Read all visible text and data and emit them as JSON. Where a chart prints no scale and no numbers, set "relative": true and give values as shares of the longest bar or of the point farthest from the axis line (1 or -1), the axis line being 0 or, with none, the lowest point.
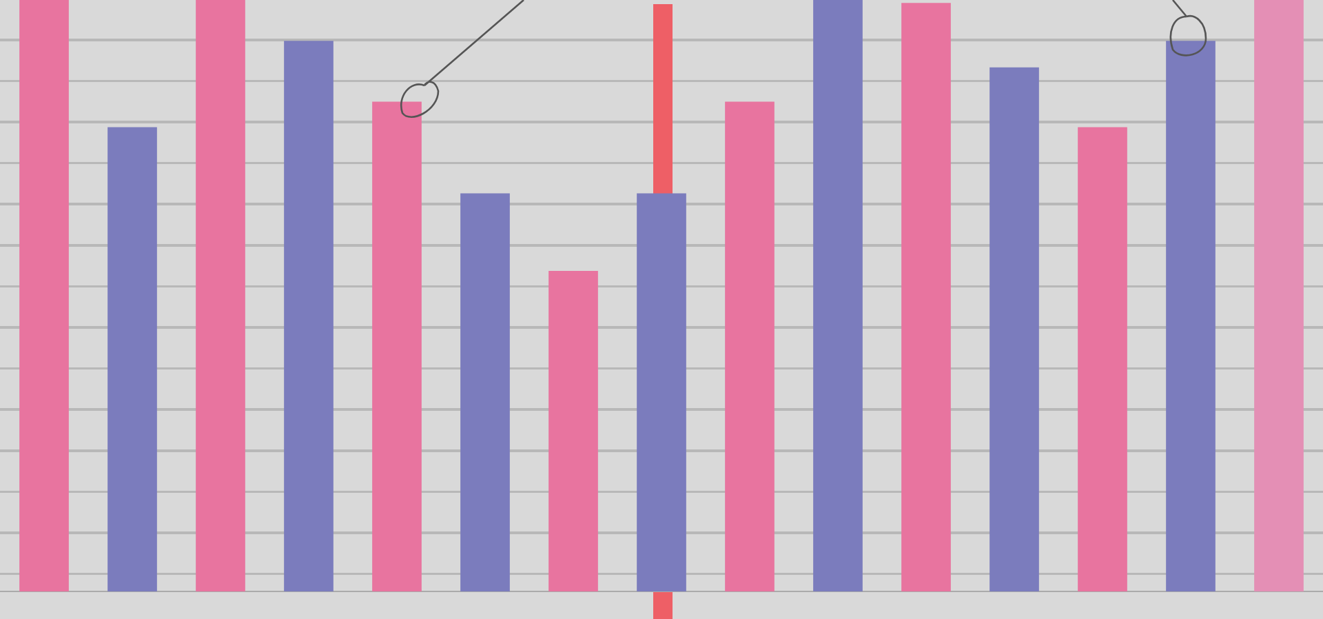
{
  "chart_data": {
    "type": "bar",
    "relative": true,
    "categories": [
      null,
      null,
      null,
      null,
      null,
      null,
      null,
      null,
      null,
      null,
      null,
      null,
      null,
      null,
      null
    ],
    "values": [
      1,
      0.785,
      1,
      0.931,
      0.828,
      0.673,
      0.542,
      0.673,
      0.828,
      1,
      0.995,
      0.886,
      0.785,
      0.931,
      1
    ],
    "colors": [
      "#e8749f",
      "#7b7cbd",
      "#e8749f",
      "#7b7cbd",
      "#e8749f",
      "#7b7cbd",
      "#e8749f",
      "#7b7cbd",
      "#e8749f",
      "#7b7cbd",
      "#e8749f",
      "#7b7cbd",
      "#e8749f",
      "#7b7cbd",
      "#e48fb5"
    ]
  }
}
